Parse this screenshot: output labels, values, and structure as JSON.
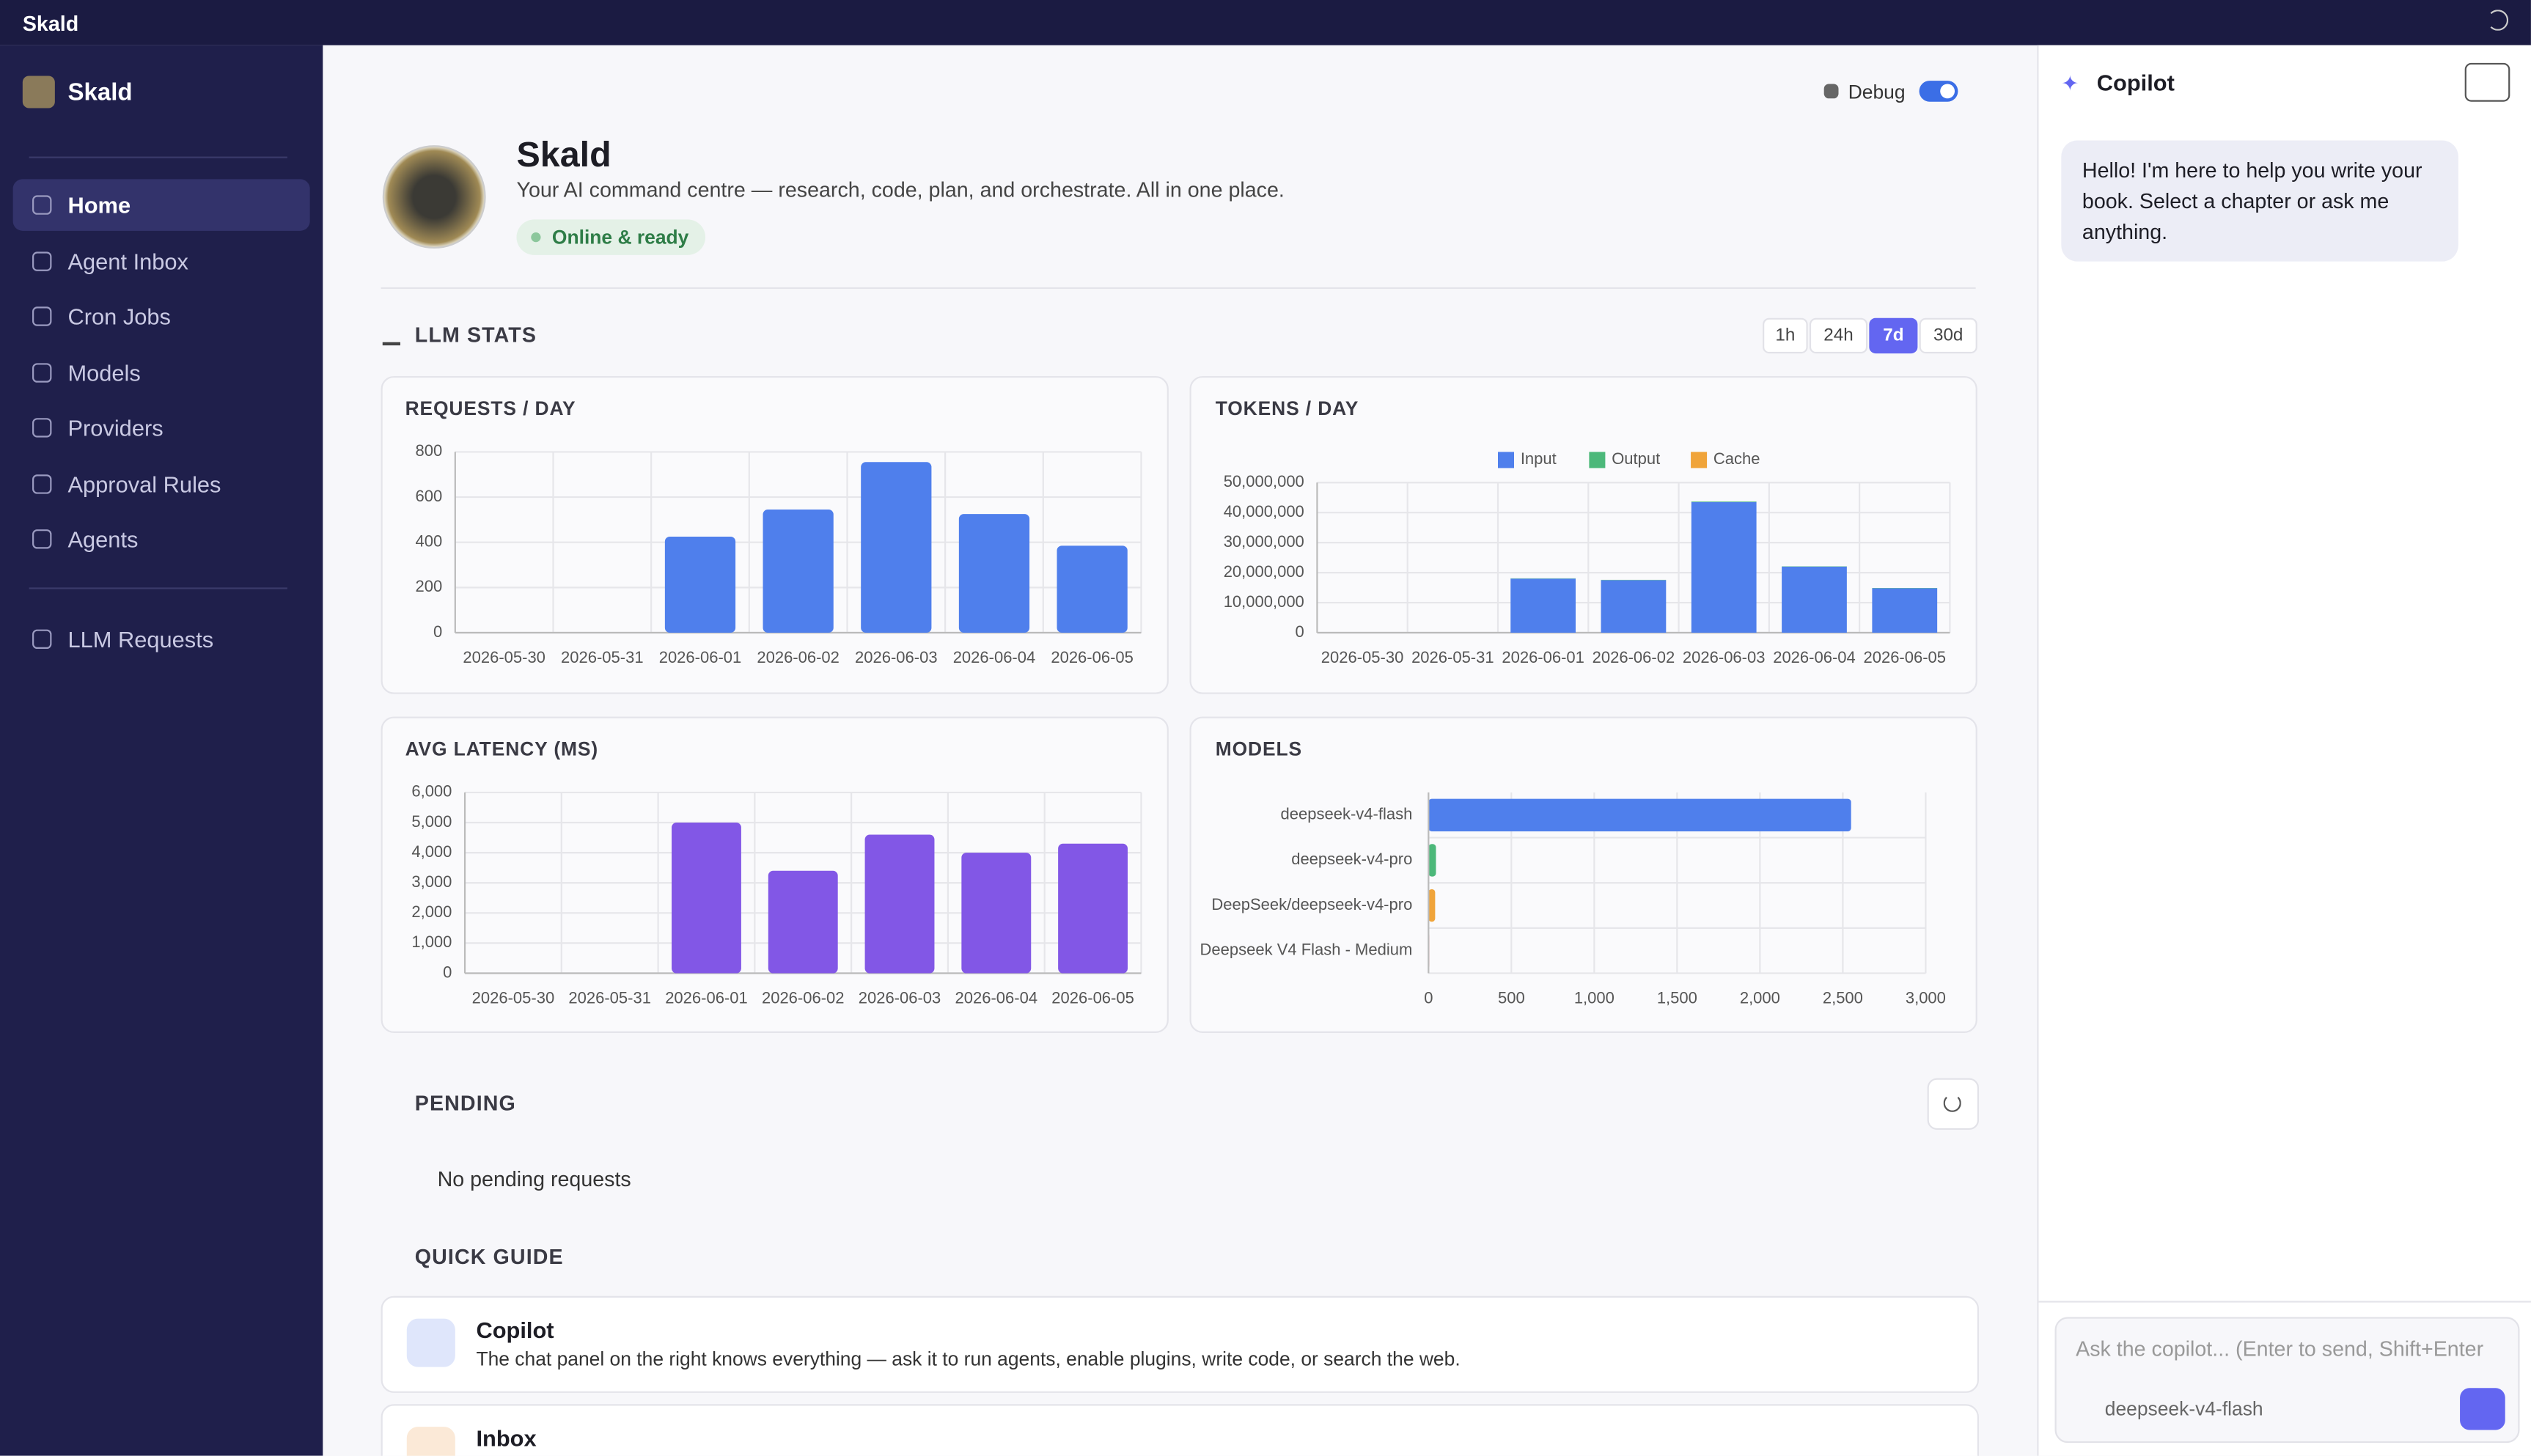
{
  "topbar": {
    "title": "Skald"
  },
  "sidebar": {
    "brand": "Skald",
    "nav": [
      "Home",
      "Agent Inbox",
      "Cron Jobs",
      "Models",
      "Providers",
      "Approval Rules",
      "Agents"
    ],
    "nav_secondary": [
      "LLM Requests"
    ]
  },
  "header": {
    "debug_label": "Debug",
    "title": "Skald",
    "subtitle": "Your AI command centre — research, code, plan, and orchestrate. All in one place.",
    "status": "Online & ready"
  },
  "stats": {
    "title": "LLM STATS",
    "ranges": [
      "1h",
      "24h",
      "7d",
      "30d"
    ]
  },
  "chart_data": [
    {
      "type": "bar",
      "title": "REQUESTS / DAY",
      "categories": [
        "2026-05-30",
        "2026-05-31",
        "2026-06-01",
        "2026-06-02",
        "2026-06-03",
        "2026-06-04",
        "2026-06-05"
      ],
      "values": [
        0,
        0,
        425,
        545,
        755,
        525,
        385
      ],
      "color": "#4f7fec",
      "ylim": [
        0,
        800
      ],
      "yticks": [
        0,
        200,
        400,
        600,
        800
      ],
      "grid": true
    },
    {
      "type": "bar",
      "title": "TOKENS / DAY",
      "categories": [
        "2026-05-30",
        "2026-05-31",
        "2026-06-01",
        "2026-06-02",
        "2026-06-03",
        "2026-06-04",
        "2026-06-05"
      ],
      "stacked": true,
      "series": [
        {
          "name": "Input",
          "color": "#4f7fec",
          "values": [
            0,
            0,
            18000000,
            17500000,
            43500000,
            22000000,
            14800000
          ]
        },
        {
          "name": "Output",
          "color": "#4cb87a",
          "values": [
            0,
            0,
            100000,
            100000,
            200000,
            100000,
            100000
          ]
        },
        {
          "name": "Cache",
          "color": "#f0a43a",
          "values": [
            0,
            0,
            0,
            0,
            0,
            0,
            0
          ]
        }
      ],
      "ylim": [
        0,
        50000000
      ],
      "yticks": [
        0,
        {
          "value": 10000000,
          "label": "10,000,000"
        },
        {
          "value": 20000000,
          "label": "20,000,000"
        },
        {
          "value": 30000000,
          "label": "30,000,000"
        },
        {
          "value": 40000000,
          "label": "40,000,000"
        },
        {
          "value": 50000000,
          "label": "50,000,000"
        }
      ],
      "grid": true
    },
    {
      "type": "bar",
      "title": "AVG LATENCY (MS)",
      "categories": [
        "2026-05-30",
        "2026-05-31",
        "2026-06-01",
        "2026-06-02",
        "2026-06-03",
        "2026-06-04",
        "2026-06-05"
      ],
      "values": [
        0,
        0,
        5000,
        3400,
        4600,
        4000,
        4300
      ],
      "color": "#8257e6",
      "ylim": [
        0,
        6000
      ],
      "yticks": [
        0,
        {
          "value": 1000,
          "label": "1,000"
        },
        {
          "value": 2000,
          "label": "2,000"
        },
        {
          "value": 3000,
          "label": "3,000"
        },
        {
          "value": 4000,
          "label": "4,000"
        },
        {
          "value": 5000,
          "label": "5,000"
        },
        {
          "value": 6000,
          "label": "6,000"
        }
      ],
      "grid": true
    },
    {
      "type": "bar",
      "orientation": "horizontal",
      "title": "MODELS",
      "categories": [
        "deepseek-v4-flash",
        "deepseek-v4-pro",
        "DeepSeek/deepseek-v4-pro",
        "Deepseek V4 Flash - Medium"
      ],
      "values": [
        2550,
        45,
        40,
        5
      ],
      "colors": [
        "#4f7fec",
        "#4cb87a",
        "#f0a43a",
        "#e05c5c"
      ],
      "xlim": [
        0,
        3000
      ],
      "xticks": [
        0,
        500,
        {
          "value": 1000,
          "label": "1,000"
        },
        {
          "value": 1500,
          "label": "1,500"
        },
        {
          "value": 2000,
          "label": "2,000"
        },
        {
          "value": 2500,
          "label": "2,500"
        },
        {
          "value": 3000,
          "label": "3,000"
        }
      ],
      "grid": true
    }
  ],
  "pending": {
    "title": "PENDING",
    "empty": "No pending requests"
  },
  "quick_guide": {
    "title": "QUICK GUIDE",
    "items": [
      {
        "title": "Copilot",
        "text": "The chat panel on the right knows everything — ask it to run agents, enable plugins, write code, or search the web."
      },
      {
        "title": "Inbox"
      }
    ]
  },
  "copilot": {
    "title": "Copilot",
    "message": "Hello! I'm here to help you write your book. Select a chapter or ask me anything.",
    "placeholder": "Ask the copilot... (Enter to send, Shift+Enter for new line)",
    "model": "deepseek-v4-flash"
  }
}
